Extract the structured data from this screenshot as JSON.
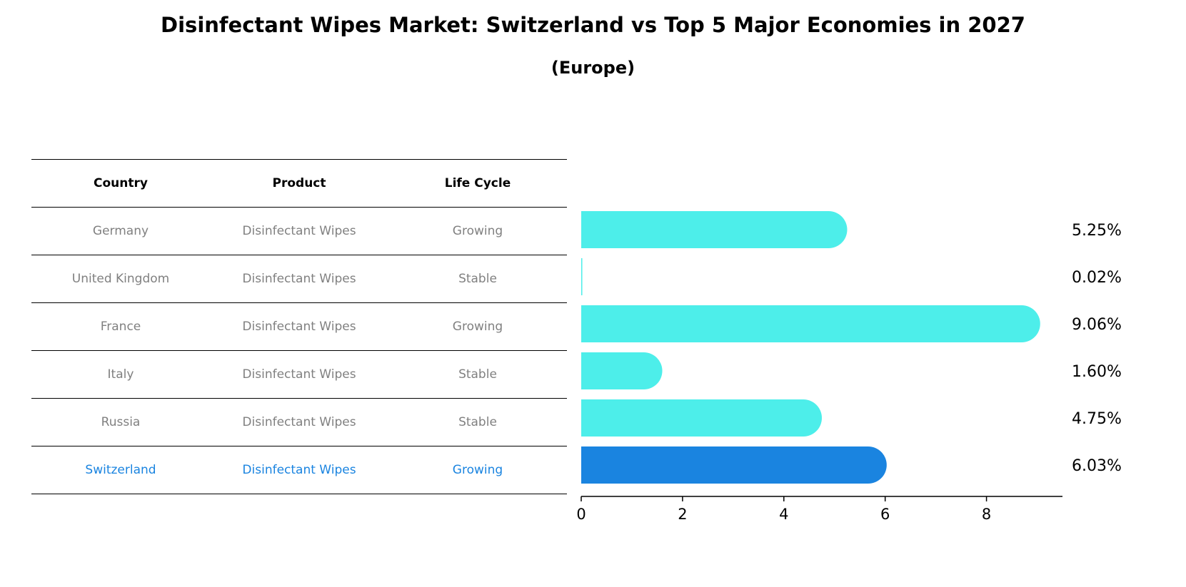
{
  "title": "Disinfectant Wipes Market: Switzerland vs Top 5 Major Economies in 2027",
  "subtitle": "(Europe)",
  "table": {
    "headers": [
      "Country",
      "Product",
      "Life Cycle"
    ],
    "rows": [
      {
        "country": "Germany",
        "product": "Disinfectant Wipes",
        "life_cycle": "Growing"
      },
      {
        "country": "United Kingdom",
        "product": "Disinfectant Wipes",
        "life_cycle": "Stable"
      },
      {
        "country": "France",
        "product": "Disinfectant Wipes",
        "life_cycle": "Growing"
      },
      {
        "country": "Italy",
        "product": "Disinfectant Wipes",
        "life_cycle": "Stable"
      },
      {
        "country": "Russia",
        "product": "Disinfectant Wipes",
        "life_cycle": "Stable"
      },
      {
        "country": "Switzerland",
        "product": "Disinfectant Wipes",
        "life_cycle": "Growing"
      }
    ],
    "highlight_color": "#1a84e0",
    "default_text_color": "#808080"
  },
  "chart_data": {
    "type": "bar",
    "orientation": "horizontal",
    "categories": [
      "Germany",
      "United Kingdom",
      "France",
      "Italy",
      "Russia",
      "Switzerland"
    ],
    "values": [
      5.25,
      0.02,
      9.06,
      1.6,
      4.75,
      6.03
    ],
    "value_labels": [
      "5.25%",
      "0.02%",
      "9.06%",
      "1.60%",
      "4.75%",
      "6.03%"
    ],
    "colors": [
      "#4deeea",
      "#4deeea",
      "#4deeea",
      "#4deeea",
      "#4deeea",
      "#1a84e0"
    ],
    "xlim": [
      0,
      9.5
    ],
    "xticks": [
      0,
      2,
      4,
      6,
      8
    ],
    "xlabel": "",
    "ylabel": "",
    "grid": false
  }
}
